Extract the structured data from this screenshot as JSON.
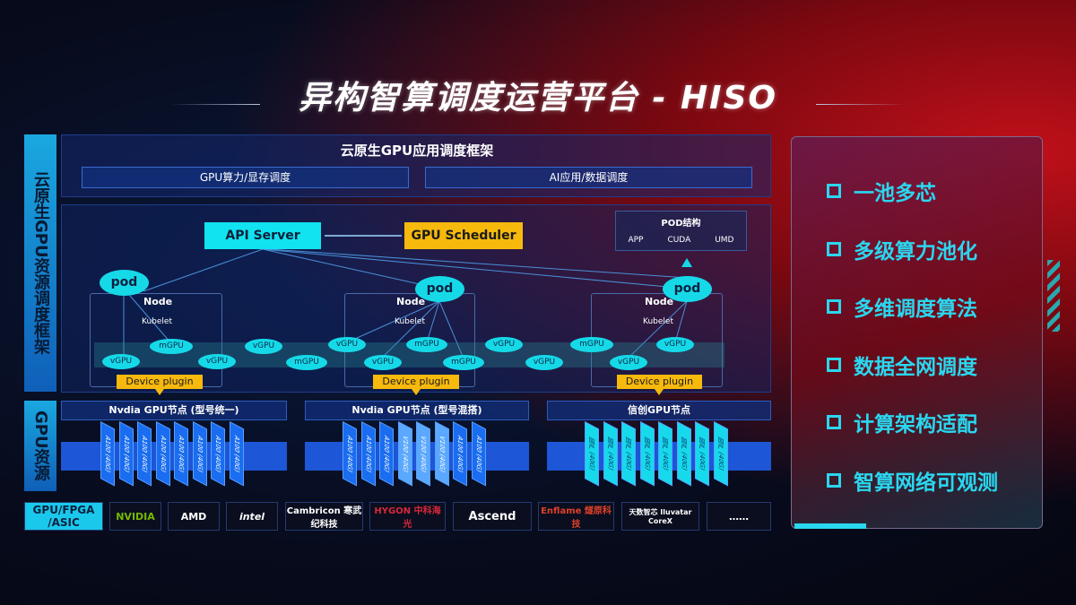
{
  "title": "异构智算调度运营平台 - HISO",
  "left_labels": {
    "framework": "云原生GPU资源调度框架",
    "gpu": "GPU资源",
    "chips": "GPU/FPGA /ASIC"
  },
  "app_layer": {
    "title": "云原生GPU应用调度框架",
    "boxes": [
      "GPU算力/显存调度",
      "AI应用/数据调度"
    ]
  },
  "diagram": {
    "api_server": "API Server",
    "gpu_scheduler": "GPU Scheduler",
    "pod_struct": {
      "title": "POD结构",
      "items": [
        "APP",
        "CUDA",
        "UMD"
      ]
    },
    "pod": "pod",
    "node": "Node",
    "kubelet": "Kubelet",
    "device_plugin": "Device plugin",
    "units": [
      "vGPU",
      "mGPU",
      "vGPU",
      "vGPU",
      "mGPU",
      "vGPU",
      "vGPU",
      "mGPU",
      "mGPU",
      "vGPU",
      "vGPU",
      "mGPU",
      "vGPU",
      "vGPU"
    ]
  },
  "gpu_nodes": [
    {
      "title": "Nvdia GPU节点 (型号统一)",
      "cards": [
        "A100 (40G)",
        "A100 (40G)",
        "A100 (40G)",
        "A100 (40G)",
        "A100 (40G)",
        "A100 (40G)",
        "A100 (40G)",
        "A100 (40G)"
      ]
    },
    {
      "title": "Nvdia GPU节点 (型号混搭)",
      "cards": [
        "A100 (40G)",
        "A100 (40G)",
        "A100 (40G)",
        "V100 (40G)",
        "V100 (40G)",
        "V100 (40G)",
        "A100 (40G)",
        "A100 (40G)"
      ]
    },
    {
      "title": "信创GPU节点",
      "cards": [
        "国产 (40G)",
        "国产 (40G)",
        "国产 (40G)",
        "国产 (40G)",
        "国产 (40G)",
        "国产 (40G)",
        "国产 (40G)",
        "国产 (40G)"
      ]
    }
  ],
  "vendors": [
    "NVIDIA",
    "AMD",
    "intel",
    "Cambricon 寒武纪科技",
    "HYGON 中科海光",
    "Ascend",
    "Enflame 燧原科技",
    "天数智芯 Iluvatar CoreX",
    "……"
  ],
  "features": [
    "一池多芯",
    "多级算力池化",
    "多维调度算法",
    "数据全网调度",
    "计算架构适配",
    "智算网络可观测"
  ],
  "colors": {
    "cyan": "#11e3f0",
    "yellow": "#f6b90c",
    "blue": "#1d56d6",
    "red": "#c0101a"
  }
}
